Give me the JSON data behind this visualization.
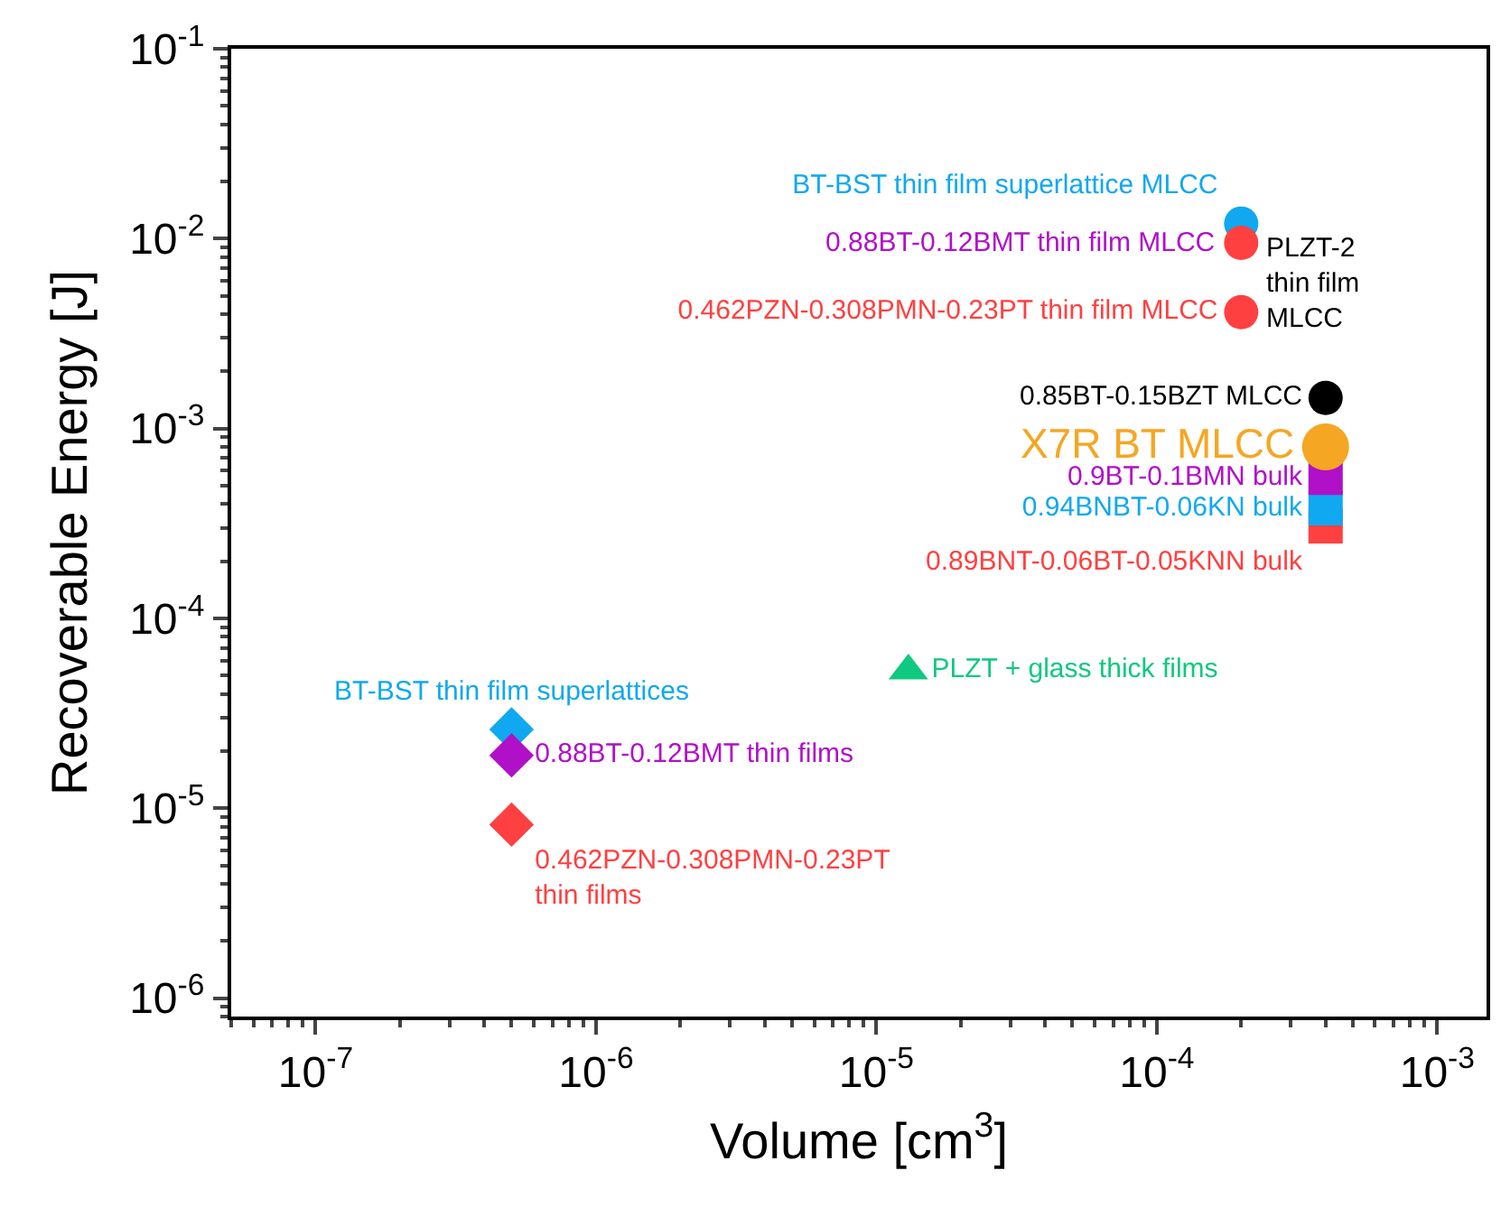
{
  "chart_data": {
    "type": "scatter",
    "xlabel": "Volume [cm$^{3}$]",
    "ylabel": "Recoverable Energy [J]",
    "log": "xy",
    "legend": false,
    "xlim": [
      5e-08,
      0.0015
    ],
    "ylim": [
      8e-07,
      0.1
    ],
    "xticks": [
      {
        "value": 1e-07,
        "label": "10$^{-7}$"
      },
      {
        "value": 1e-06,
        "label": "10$^{-6}$"
      },
      {
        "value": 1e-05,
        "label": "10$^{-5}$"
      },
      {
        "value": 0.0001,
        "label": "10$^{-4}$"
      },
      {
        "value": 0.001,
        "label": "10$^{-3}$"
      }
    ],
    "yticks": [
      {
        "value": 1e-06,
        "label": "10$^{-6}$"
      },
      {
        "value": 1e-05,
        "label": "10$^{-5}$"
      },
      {
        "value": 0.0001,
        "label": "10$^{-4}$"
      },
      {
        "value": 0.001,
        "label": "10$^{-3}$"
      },
      {
        "value": 0.01,
        "label": "10$^{-2}$"
      },
      {
        "value": 0.1,
        "label": "10$^{-1}$"
      }
    ],
    "annotations": [
      {
        "text": "0.88BT-0.12BMT thin film MLCC",
        "x": 0.0002,
        "y": 0.0095
      },
      {
        "text": "PLZT-2\nthin film\nMLCC",
        "x": 0.0002,
        "y": 0.0095
      }
    ],
    "series": [
      {
        "name": "BT-BST thin film superlattice MLCC",
        "color": "#10a8f0",
        "marker": "circle",
        "x": [
          0.0002
        ],
        "values": [
          0.012
        ]
      },
      {
        "color": "#ff4040",
        "marker": "circle",
        "x": [
          0.0002
        ],
        "values": [
          0.0095
        ]
      },
      {
        "name": "0.462PZN-0.308PMN-0.23PT thin film MLCC",
        "color": "#ff4040",
        "marker": "circle",
        "x": [
          0.0002
        ],
        "values": [
          0.0041
        ]
      },
      {
        "name": "0.85BT-0.15BZT MLCC",
        "color": "#000000",
        "marker": "circle",
        "x": [
          0.0004
        ],
        "values": [
          0.00145
        ]
      },
      {
        "name": "0.89BNT-0.06BT-0.05KNN bulk",
        "color": "#ff4040",
        "marker": "square",
        "x": [
          0.0004
        ],
        "values": [
          0.000305
        ]
      },
      {
        "name": "0.94BNBT-0.06KN bulk",
        "color": "#10a8f0",
        "marker": "square",
        "x": [
          0.0004
        ],
        "values": [
          0.00038
        ]
      },
      {
        "name": "0.9BT-0.1BMN bulk",
        "color": "#b010c8",
        "marker": "square",
        "x": [
          0.0004
        ],
        "values": [
          0.00055
        ]
      },
      {
        "name": "X7R BT MLCC",
        "color": "#f5a623",
        "marker": "circle",
        "x": [
          0.0004
        ],
        "values": [
          0.0008
        ]
      },
      {
        "name": "PLZT + glass thick films",
        "color": "#10c880",
        "marker": "triangle",
        "x": [
          1.3e-05
        ],
        "values": [
          5.3e-05
        ]
      },
      {
        "name": "BT-BST thin film superlattices",
        "color": "#10a8f0",
        "marker": "diamond",
        "x": [
          5e-07
        ],
        "values": [
          2.6e-05
        ]
      },
      {
        "name": "0.88BT-0.12BMT thin films",
        "color": "#b010c8",
        "marker": "diamond",
        "x": [
          5e-07
        ],
        "values": [
          1.9e-05
        ]
      },
      {
        "name": "0.462PZN-0.308PMN-0.23PT\nthin films",
        "color": "#ff4040",
        "marker": "diamond",
        "x": [
          5e-07
        ],
        "values": [
          8.2e-06
        ]
      }
    ]
  }
}
